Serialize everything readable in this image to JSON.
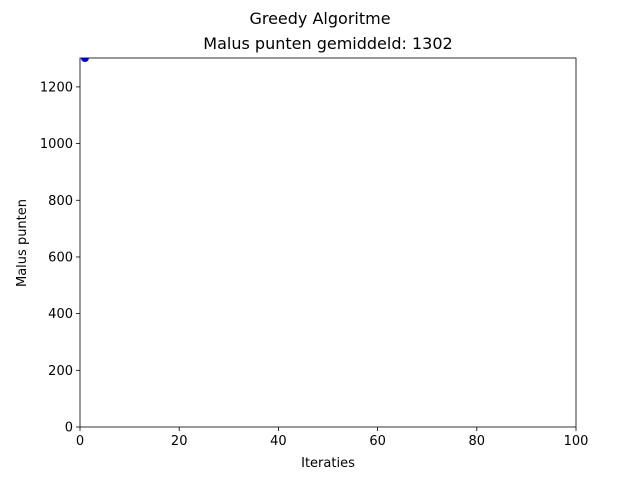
{
  "figure": {
    "suptitle": "Greedy Algoritme"
  },
  "chart_data": {
    "type": "scatter",
    "title": "Malus punten gemiddeld: 1302",
    "xlabel": "Iteraties",
    "ylabel": "Malus punten",
    "xlim": [
      0,
      100
    ],
    "ylim": [
      0,
      1302
    ],
    "x_ticks": [
      0,
      20,
      40,
      60,
      80,
      100
    ],
    "y_ticks": [
      0,
      200,
      400,
      600,
      800,
      1000,
      1200
    ],
    "grid": false,
    "legend": "none",
    "series": [
      {
        "color": "#0000ff",
        "marker": "circle",
        "points": [
          {
            "x": 1,
            "y": 1302
          }
        ]
      }
    ]
  }
}
